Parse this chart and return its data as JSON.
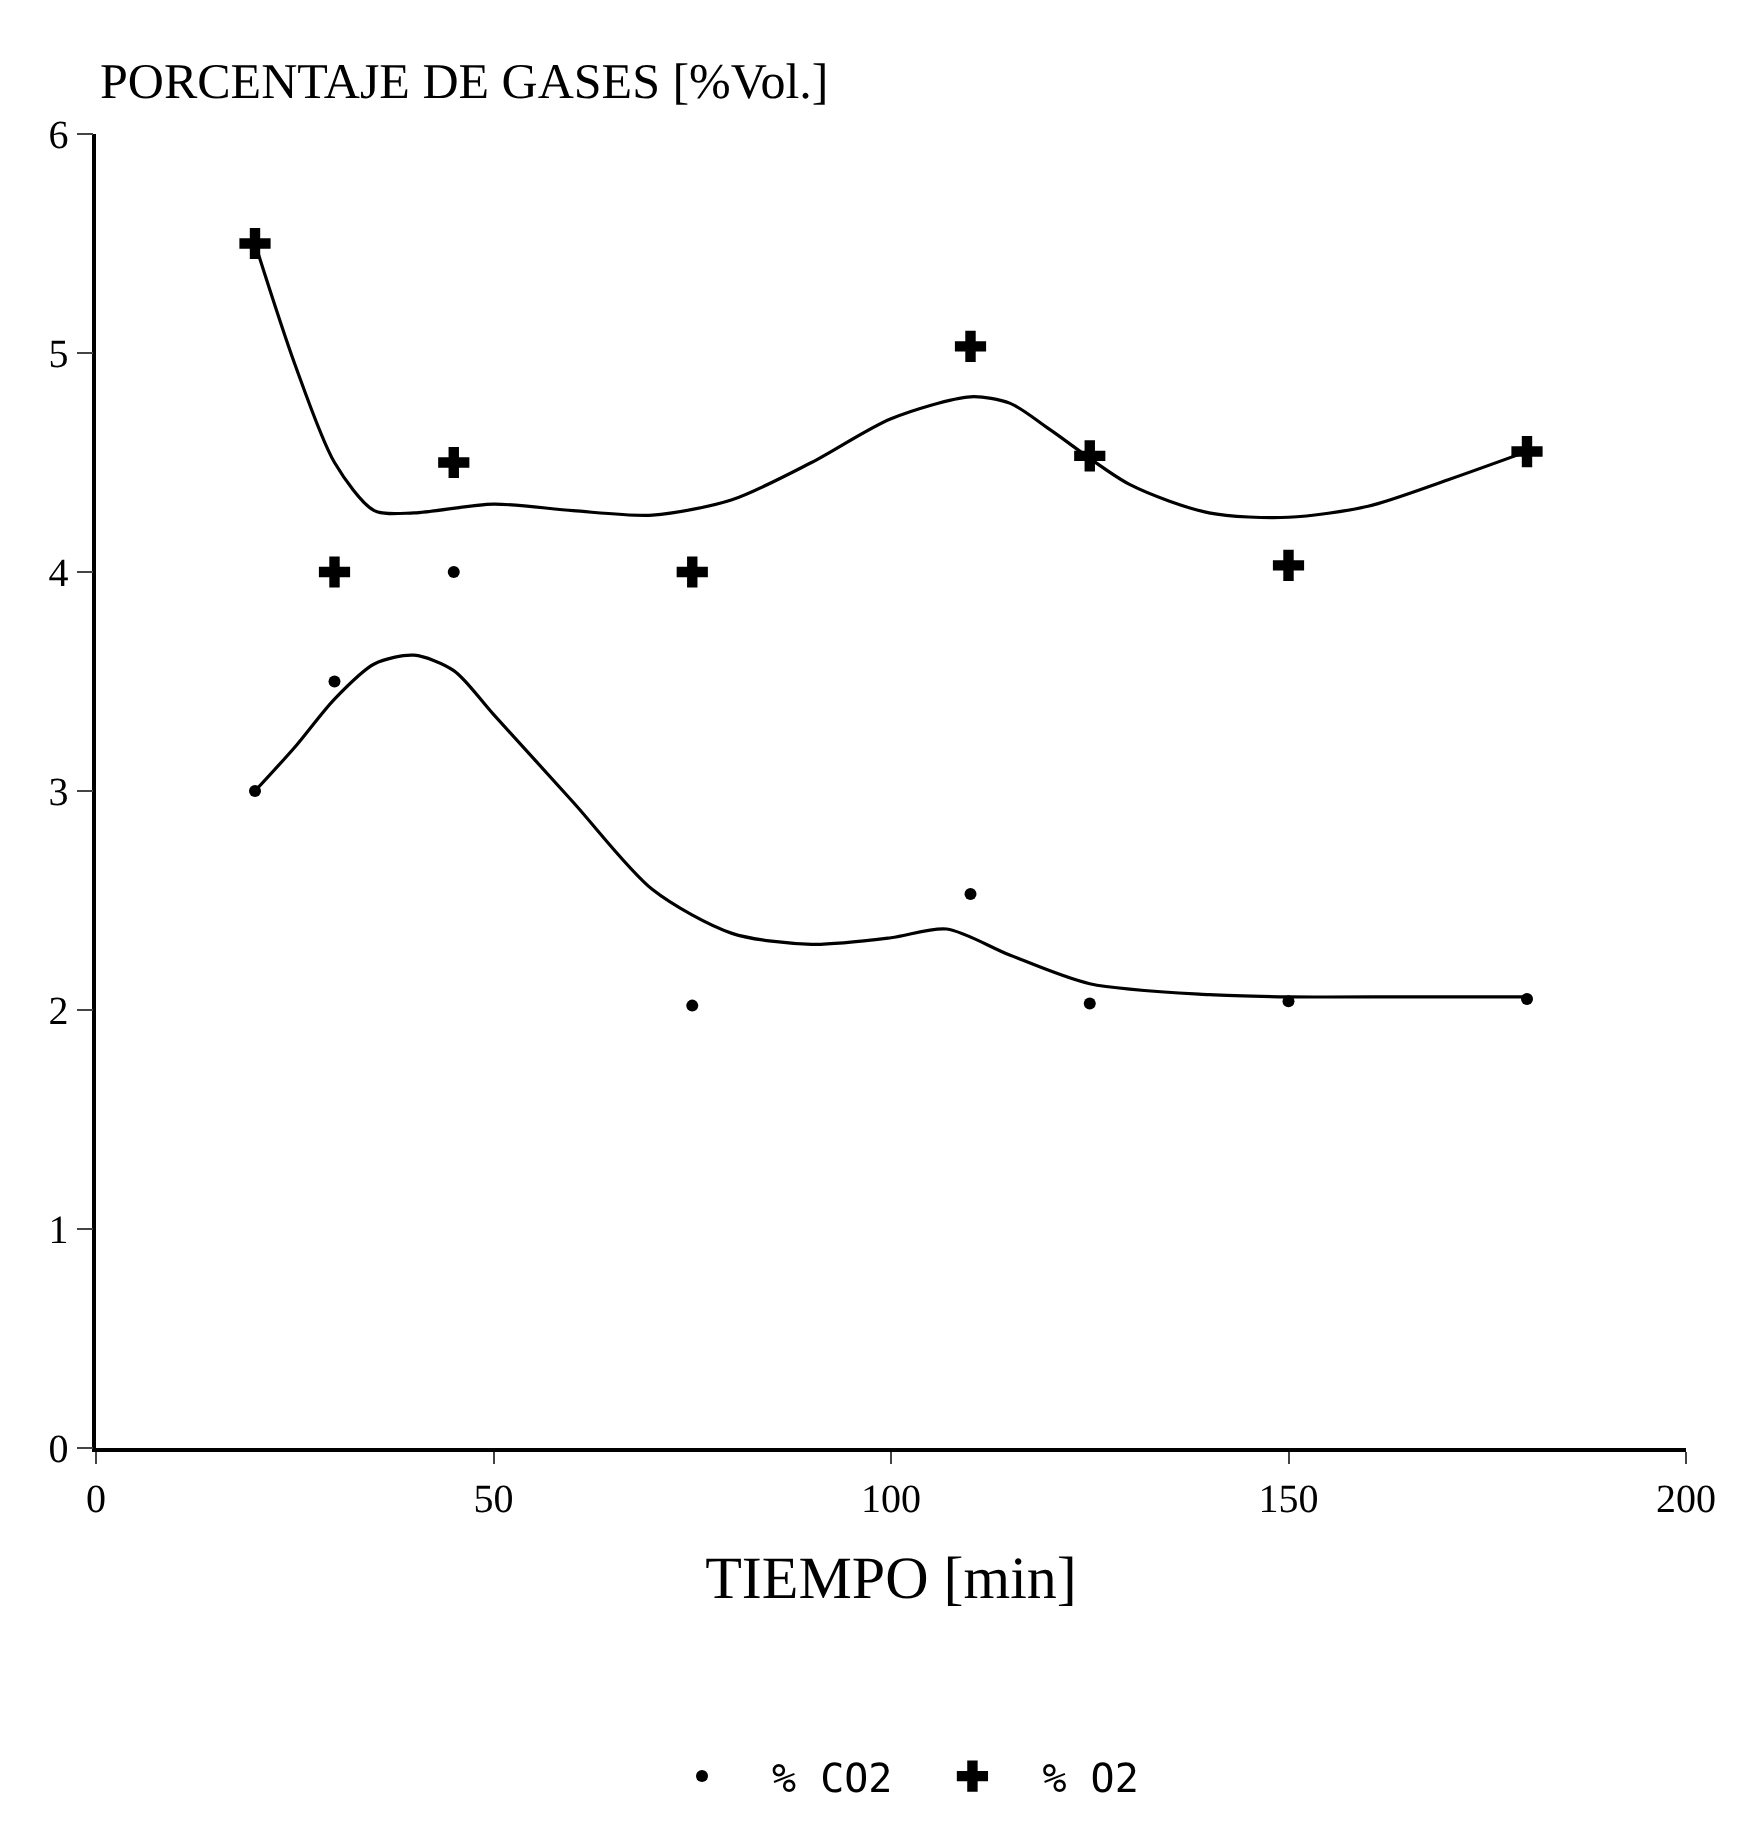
{
  "chart_data": {
    "type": "scatter",
    "ylabel": "PORCENTAJE DE GASES [%Vol.]",
    "xlabel": "TIEMPO [min]",
    "xlim": [
      0,
      200
    ],
    "xticks": [
      0,
      50,
      100,
      150,
      200
    ],
    "ylim": [
      0,
      6
    ],
    "yticks": [
      0,
      1,
      2,
      3,
      4,
      5,
      6
    ],
    "grid": false,
    "legend": "bottom",
    "series": [
      {
        "name": "% CO2",
        "marker": "circle",
        "color": "#000000",
        "x": [
          20,
          30,
          45,
          75,
          110,
          125,
          150,
          180
        ],
        "values": [
          3.0,
          3.5,
          4.0,
          2.02,
          2.53,
          2.03,
          2.04,
          2.05
        ]
      },
      {
        "name": "% O2",
        "marker": "cross",
        "color": "#000000",
        "x": [
          20,
          30,
          45,
          75,
          110,
          125,
          150,
          180
        ],
        "values": [
          5.5,
          4.0,
          4.5,
          4.0,
          5.03,
          4.53,
          4.03,
          4.55
        ]
      },
      {
        "type": "line",
        "marker": "none",
        "line_style": "solid",
        "color": "#000000",
        "x": [
          20,
          25,
          30,
          35,
          40,
          45,
          50,
          60,
          70,
          80,
          90,
          100,
          107,
          115,
          125,
          140,
          150,
          165,
          180
        ],
        "values": [
          3.0,
          3.2,
          3.42,
          3.58,
          3.62,
          3.55,
          3.35,
          2.95,
          2.55,
          2.35,
          2.3,
          2.33,
          2.37,
          2.25,
          2.12,
          2.07,
          2.06,
          2.06,
          2.06
        ]
      },
      {
        "type": "line",
        "marker": "none",
        "line_style": "solid",
        "color": "#000000",
        "x": [
          20,
          25,
          30,
          35,
          40,
          50,
          60,
          70,
          80,
          90,
          100,
          110,
          115,
          120,
          130,
          140,
          150,
          160,
          170,
          180
        ],
        "values": [
          5.5,
          4.95,
          4.5,
          4.28,
          4.27,
          4.31,
          4.28,
          4.26,
          4.33,
          4.5,
          4.7,
          4.8,
          4.77,
          4.65,
          4.4,
          4.27,
          4.25,
          4.3,
          4.42,
          4.55
        ]
      }
    ]
  }
}
